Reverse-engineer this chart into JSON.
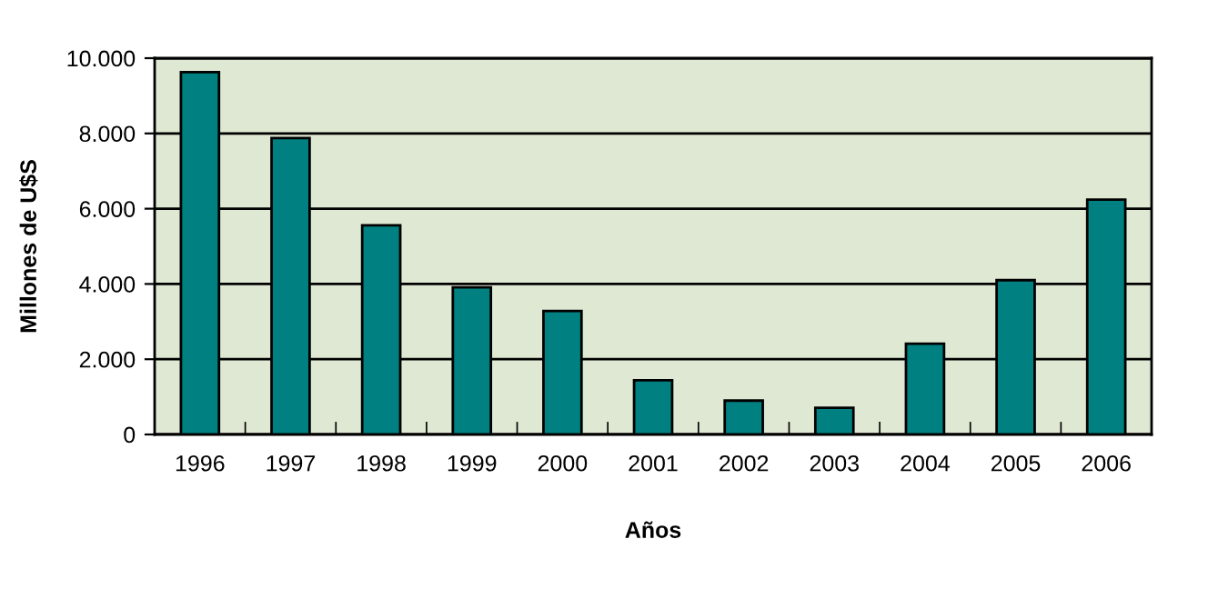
{
  "chart_data": {
    "type": "bar",
    "xlabel": "Años",
    "ylabel": "Millones de U$S",
    "categories": [
      "1996",
      "1997",
      "1998",
      "1999",
      "2000",
      "2001",
      "2002",
      "2003",
      "2004",
      "2005",
      "2006"
    ],
    "series": [
      {
        "color": "#008080",
        "values": [
          9630,
          7880,
          5560,
          3910,
          3280,
          1440,
          900,
          710,
          2410,
          4100,
          6240
        ]
      }
    ],
    "ylim": [
      0,
      10000
    ],
    "yticks": [
      {
        "value": 0,
        "label": "0"
      },
      {
        "value": 2000,
        "label": "2.000"
      },
      {
        "value": 4000,
        "label": "4.000"
      },
      {
        "value": 6000,
        "label": "6.000"
      },
      {
        "value": 8000,
        "label": "8.000"
      },
      {
        "value": 10000,
        "label": "10.000"
      }
    ],
    "grid": "y",
    "legend": false
  }
}
